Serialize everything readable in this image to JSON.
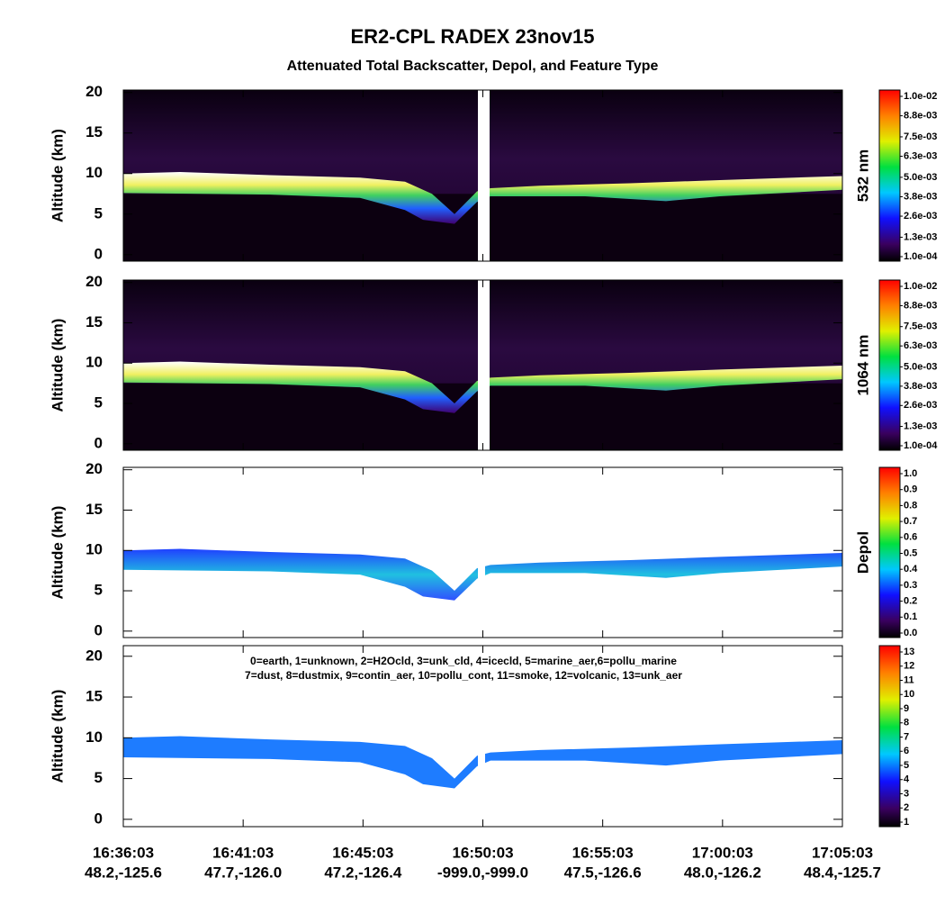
{
  "title": "ER2-CPL RADEX 23nov15",
  "subtitle": "Attenuated Total Backscatter, Depol, and Feature Type",
  "x_axis": {
    "categories": [
      "16:36:03",
      "16:41:03",
      "16:45:03",
      "16:50:03",
      "16:55:03",
      "17:00:03",
      "17:05:03"
    ],
    "coords": [
      "48.2,-125.6",
      "47.7,-126.0",
      "47.2,-126.4",
      "-999.0,-999.0",
      "47.5,-126.6",
      "48.0,-126.2",
      "48.4,-125.7"
    ]
  },
  "chart_data": [
    {
      "type": "heatmap",
      "ylabel": "Altitude (km)",
      "ylim": [
        -0.8,
        20.3
      ],
      "yticks": [
        0,
        5,
        10,
        15,
        20
      ],
      "colorbar_label": "532 nm",
      "clim": [
        0.0001,
        0.01
      ],
      "cticks": [
        {
          "value": 0.0001,
          "label": "1.0e-04"
        },
        {
          "value": 0.0013,
          "label": "1.3e-03"
        },
        {
          "value": 0.0026,
          "label": "2.6e-03"
        },
        {
          "value": 0.0038,
          "label": "3.8e-03"
        },
        {
          "value": 0.005,
          "label": "5.0e-03"
        },
        {
          "value": 0.0063,
          "label": "6.3e-03"
        },
        {
          "value": 0.0075,
          "label": "7.5e-03"
        },
        {
          "value": 0.0088,
          "label": "8.8e-03"
        },
        {
          "value": 0.01,
          "label": "1.0e-02"
        }
      ]
    },
    {
      "type": "heatmap",
      "ylabel": "Altitude (km)",
      "ylim": [
        -0.8,
        20.3
      ],
      "yticks": [
        0,
        5,
        10,
        15,
        20
      ],
      "colorbar_label": "1064 nm",
      "clim": [
        0.0001,
        0.01
      ],
      "cticks": [
        {
          "value": 0.0001,
          "label": "1.0e-04"
        },
        {
          "value": 0.0013,
          "label": "1.3e-03"
        },
        {
          "value": 0.0026,
          "label": "2.6e-03"
        },
        {
          "value": 0.0038,
          "label": "3.8e-03"
        },
        {
          "value": 0.005,
          "label": "5.0e-03"
        },
        {
          "value": 0.0063,
          "label": "6.3e-03"
        },
        {
          "value": 0.0075,
          "label": "7.5e-03"
        },
        {
          "value": 0.0088,
          "label": "8.8e-03"
        },
        {
          "value": 0.01,
          "label": "1.0e-02"
        }
      ]
    },
    {
      "type": "heatmap",
      "ylabel": "Altitude (km)",
      "ylim": [
        -0.8,
        20.3
      ],
      "yticks": [
        0,
        5,
        10,
        15,
        20
      ],
      "colorbar_label": "Depol",
      "clim": [
        0,
        1
      ],
      "cticks": [
        {
          "value": 0,
          "label": "0.0"
        },
        0.1,
        0.2,
        0.3,
        0.4,
        0.5,
        0.6,
        0.7,
        0.8,
        0.9,
        {
          "value": 1,
          "label": "1.0"
        }
      ]
    },
    {
      "type": "heatmap",
      "ylabel": "Altitude (km)",
      "ylim": [
        -0.9,
        21.3
      ],
      "yticks": [
        0,
        5,
        10,
        15,
        20
      ],
      "colorbar_label": "",
      "clim": [
        1,
        13
      ],
      "cticks": [
        1,
        2,
        3,
        4,
        5,
        6,
        7,
        8,
        9,
        10,
        11,
        12,
        13
      ],
      "legend_lines": [
        "0=earth, 1=unknown, 2=H2Ocld, 3=unk_cld, 4=icecld, 5=marine_aer,6=pollu_marine",
        "7=dust, 8=dustmix, 9=contin_aer, 10=pollu_cont, 11=smoke, 12=volcanic, 13=unk_aer"
      ]
    }
  ]
}
